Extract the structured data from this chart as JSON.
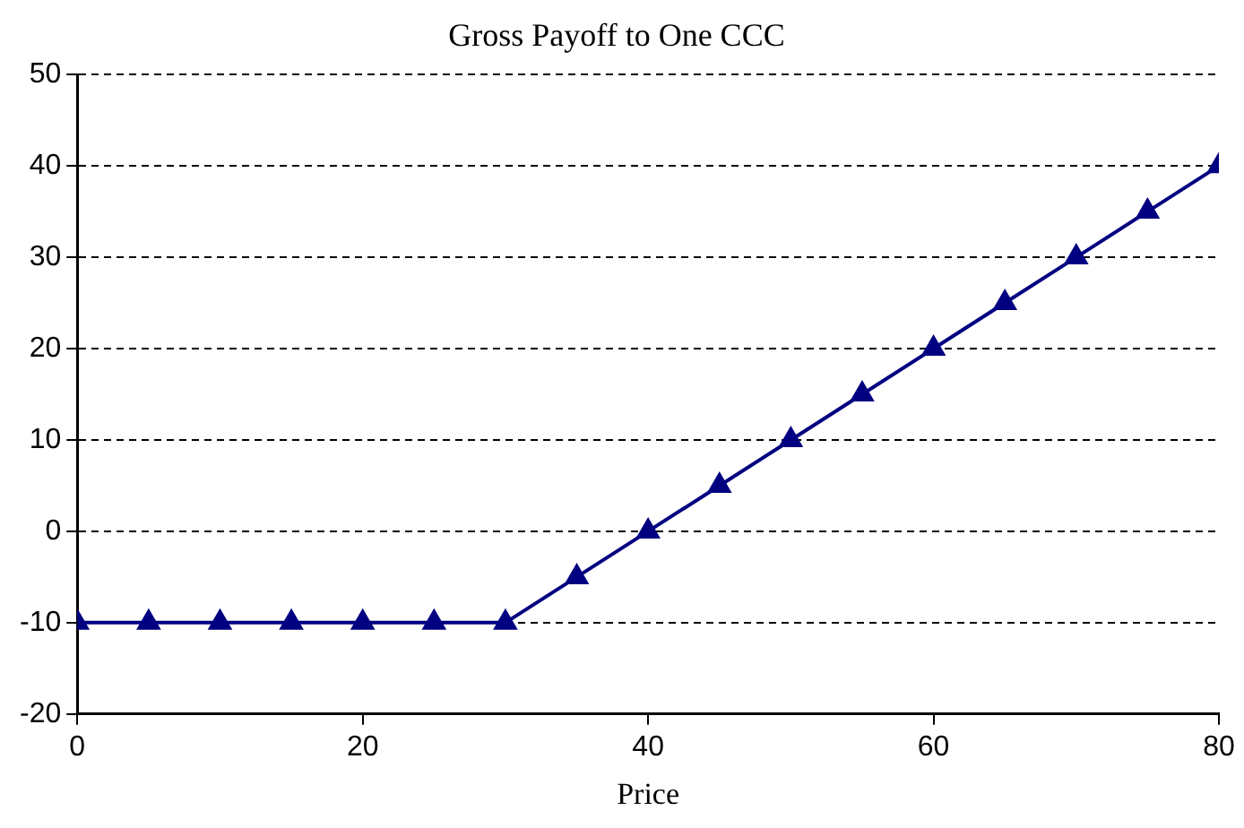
{
  "chart_data": {
    "type": "line",
    "title": "Gross Payoff to One CCC",
    "xlabel": "Price",
    "x": [
      0,
      5,
      10,
      15,
      20,
      25,
      30,
      35,
      40,
      45,
      50,
      55,
      60,
      65,
      70,
      75,
      80
    ],
    "series": [
      {
        "color": "#000080",
        "values": [
          -10,
          -10,
          -10,
          -10,
          -10,
          -10,
          -10,
          -5,
          0,
          5,
          10,
          15,
          20,
          25,
          30,
          35,
          40
        ]
      }
    ],
    "xlim": [
      0,
      80
    ],
    "xticks": [
      0,
      20,
      40,
      60,
      80
    ],
    "ylim": [
      -20,
      50
    ],
    "yticks": [
      -20,
      -10,
      0,
      10,
      20,
      30,
      40,
      50
    ],
    "grid": "y",
    "legend": false,
    "marker": "triangle",
    "line_style": "solid"
  }
}
